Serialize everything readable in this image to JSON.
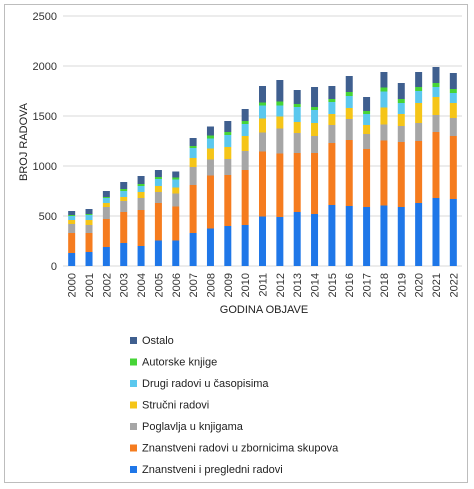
{
  "chart_data": {
    "type": "bar",
    "stacked": true,
    "title": "",
    "xlabel": "GODINA OBJAVE",
    "ylabel": "BROJ RADOVA",
    "ylim": [
      0,
      2500
    ],
    "yticks": [
      0,
      500,
      1000,
      1500,
      2000,
      2500
    ],
    "grid": true,
    "legend_position": "bottom",
    "categories": [
      "2000",
      "2001",
      "2002",
      "2003",
      "2004",
      "2005",
      "2006",
      "2007",
      "2008",
      "2009",
      "2010",
      "2011",
      "2012",
      "2013",
      "2014",
      "2015",
      "2016",
      "2017",
      "2018",
      "2019",
      "2020",
      "2021",
      "2022"
    ],
    "series": [
      {
        "name": "Znanstveni i pregledni radovi",
        "color": "#1f77e8",
        "values": [
          130,
          140,
          190,
          230,
          200,
          255,
          255,
          330,
          375,
          400,
          410,
          495,
          490,
          540,
          520,
          610,
          600,
          590,
          605,
          590,
          630,
          680,
          670
        ]
      },
      {
        "name": "Znanstveni radovi u zbornicima skupova",
        "color": "#f57c1f",
        "values": [
          200,
          190,
          280,
          310,
          360,
          375,
          340,
          480,
          530,
          510,
          550,
          650,
          635,
          590,
          610,
          620,
          660,
          580,
          650,
          650,
          620,
          660,
          630
        ]
      },
      {
        "name": "Poglavlja u knjigama",
        "color": "#a6a6a6",
        "values": [
          90,
          80,
          120,
          110,
          120,
          110,
          130,
          180,
          160,
          160,
          190,
          190,
          250,
          200,
          170,
          180,
          210,
          150,
          160,
          160,
          180,
          170,
          180
        ]
      },
      {
        "name": "Stručni radovi",
        "color": "#f5c518",
        "values": [
          40,
          50,
          40,
          40,
          60,
          60,
          60,
          90,
          110,
          120,
          150,
          140,
          120,
          110,
          130,
          110,
          110,
          90,
          170,
          120,
          200,
          180,
          150
        ]
      },
      {
        "name": "Drugi radovi u časopisima",
        "color": "#5bc8ee",
        "values": [
          40,
          50,
          50,
          60,
          60,
          70,
          80,
          100,
          100,
          120,
          120,
          130,
          110,
          150,
          130,
          120,
          120,
          110,
          160,
          110,
          120,
          100,
          100
        ]
      },
      {
        "name": "Autorske knjige",
        "color": "#46d437",
        "values": [
          10,
          10,
          10,
          20,
          20,
          20,
          20,
          20,
          30,
          30,
          30,
          30,
          40,
          30,
          30,
          30,
          40,
          30,
          40,
          40,
          40,
          40,
          40
        ]
      },
      {
        "name": "Ostalo",
        "color": "#3f5f8f",
        "values": [
          40,
          50,
          60,
          70,
          80,
          70,
          60,
          80,
          90,
          110,
          120,
          165,
          215,
          140,
          200,
          130,
          160,
          140,
          155,
          160,
          150,
          160,
          160
        ]
      }
    ]
  }
}
